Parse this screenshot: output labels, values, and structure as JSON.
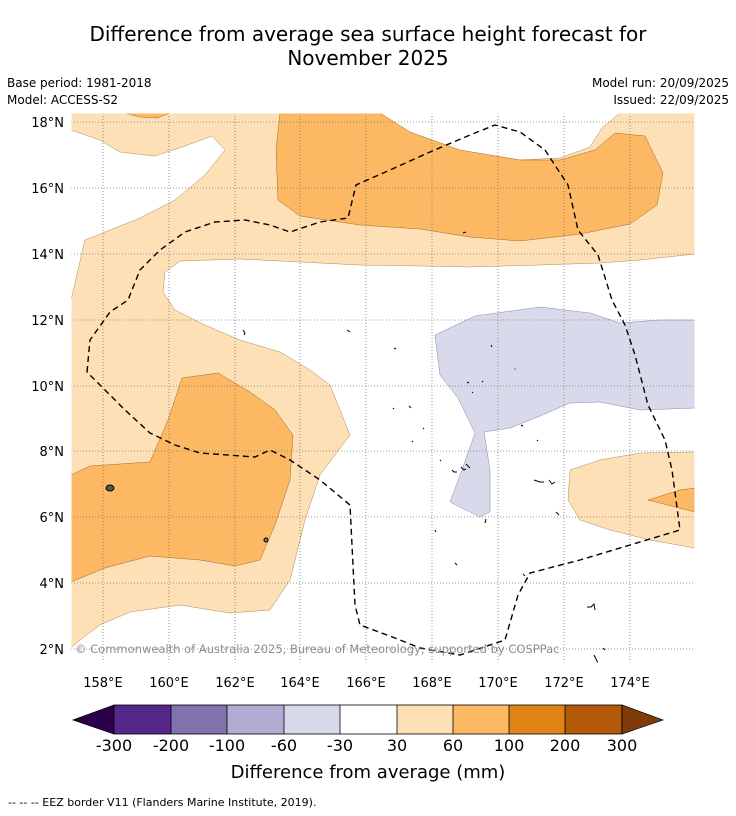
{
  "title_line1": "Difference from average sea surface height forecast for",
  "title_line2": "November 2025",
  "meta": {
    "base_period": "Base period: 1981-2018",
    "model": "Model: ACCESS-S2",
    "model_run": "Model run: 20/09/2025",
    "issued": "Issued: 22/09/2025"
  },
  "axes": {
    "lat_labels": [
      "18°N",
      "16°N",
      "14°N",
      "12°N",
      "10°N",
      "8°N",
      "6°N",
      "4°N",
      "2°N"
    ],
    "lon_labels": [
      "158°E",
      "160°E",
      "162°E",
      "164°E",
      "166°E",
      "168°E",
      "170°E",
      "172°E",
      "174°E"
    ]
  },
  "credit": "© Commonwealth of Australia 2025, Bureau of Meteorology; supported by COSPPac",
  "colorbar": {
    "ticks": [
      "-300",
      "-200",
      "-100",
      "-60",
      "-30",
      "30",
      "60",
      "100",
      "200",
      "300"
    ],
    "colors": {
      "extend_low": "#2d004b",
      "b1": "#542788",
      "b2": "#8073ac",
      "b3": "#b2abd2",
      "b4": "#d8daeb",
      "b5": "#ffffff",
      "b6": "#fee0b6",
      "b7": "#fdb863",
      "b8": "#e08214",
      "b9": "#b35806",
      "extend_high": "#7f3b08"
    },
    "label": "Difference from average (mm)"
  },
  "footnote": "--  --  -- EEZ border V11 (Flanders Marine Institute, 2019)."
}
